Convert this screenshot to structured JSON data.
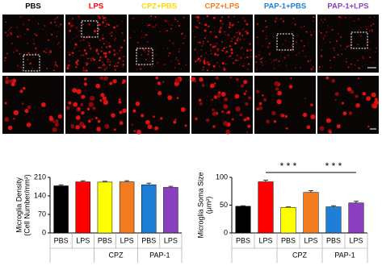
{
  "panels": {
    "columns": [
      {
        "label": "PBS",
        "color": "#000000"
      },
      {
        "label": "LPS",
        "color": "#ff0000"
      },
      {
        "label": "CPZ+PBS",
        "color": "#ffd700"
      },
      {
        "label": "CPZ+LPS",
        "color": "#f47c20"
      },
      {
        "label": "PAP-1+PBS",
        "color": "#1f7fd6"
      },
      {
        "label": "PAP-1+LPS",
        "color": "#8a3fbf"
      }
    ]
  },
  "chart_data": [
    {
      "type": "bar",
      "y_label": [
        "Microglia Density",
        "(Cell Number/mm²)"
      ],
      "categories": [
        "PBS",
        "LPS",
        "PBS",
        "LPS",
        "PBS",
        "LPS"
      ],
      "groups": [
        "CPZ",
        "PAP-1"
      ],
      "values": [
        178,
        193,
        192,
        193,
        182,
        172
      ],
      "errors": [
        4,
        4,
        3,
        4,
        6,
        4
      ],
      "colors": [
        "#000000",
        "#ff0000",
        "#ffff00",
        "#f47c20",
        "#1f7fd6",
        "#8a3fbf"
      ],
      "ylim": [
        0,
        210
      ],
      "yticks": [
        0,
        70,
        140,
        210
      ]
    },
    {
      "type": "bar",
      "y_label": [
        "Microglia Soma Size",
        "(μm²)"
      ],
      "categories": [
        "PBS",
        "LPS",
        "PBS",
        "LPS",
        "PBS",
        "LPS"
      ],
      "groups": [
        "CPZ",
        "PAP-1"
      ],
      "values": [
        48,
        92,
        46,
        73,
        47,
        54
      ],
      "errors": [
        1,
        3,
        1,
        3,
        2,
        3
      ],
      "colors": [
        "#000000",
        "#ff0000",
        "#ffff00",
        "#f47c20",
        "#1f7fd6",
        "#8a3fbf"
      ],
      "ylim": [
        0,
        100
      ],
      "yticks": [
        0,
        50,
        100
      ],
      "annotations": [
        "* * *",
        "* * *"
      ]
    }
  ]
}
